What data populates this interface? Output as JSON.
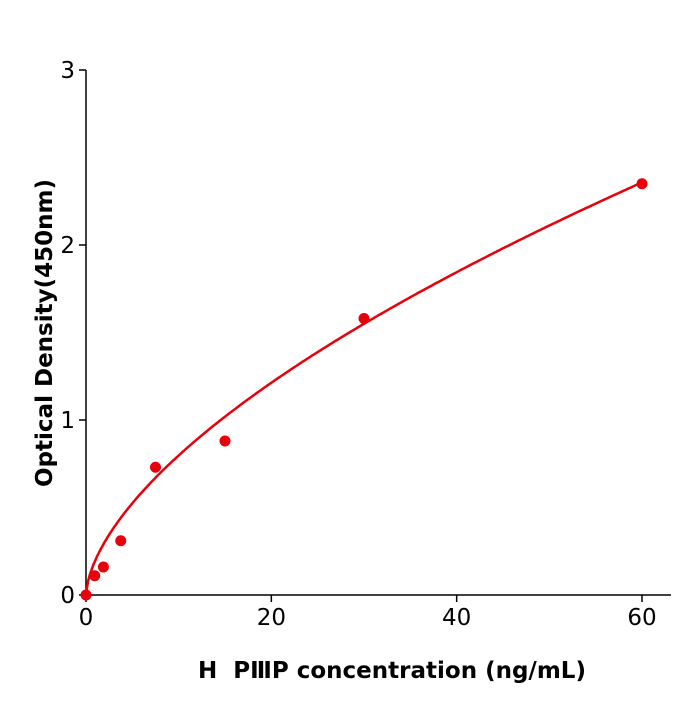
{
  "chart_data": {
    "type": "scatter",
    "xlabel": "H  PⅢP concentration (ng/mL)",
    "ylabel": "Optical Density(450nm)",
    "xlim": [
      0,
      63
    ],
    "ylim": [
      0,
      3
    ],
    "xticks": [
      0,
      20,
      40,
      60
    ],
    "yticks": [
      0,
      1,
      2,
      3
    ],
    "grid": false,
    "color": "#e8000b",
    "points": {
      "x": [
        0,
        0.94,
        1.88,
        3.75,
        7.5,
        15,
        30,
        60
      ],
      "y": [
        0.0,
        0.11,
        0.16,
        0.31,
        0.73,
        0.88,
        1.58,
        2.35
      ]
    },
    "fit": {
      "model": "power",
      "a": 0.198,
      "b": 0.605
    }
  }
}
